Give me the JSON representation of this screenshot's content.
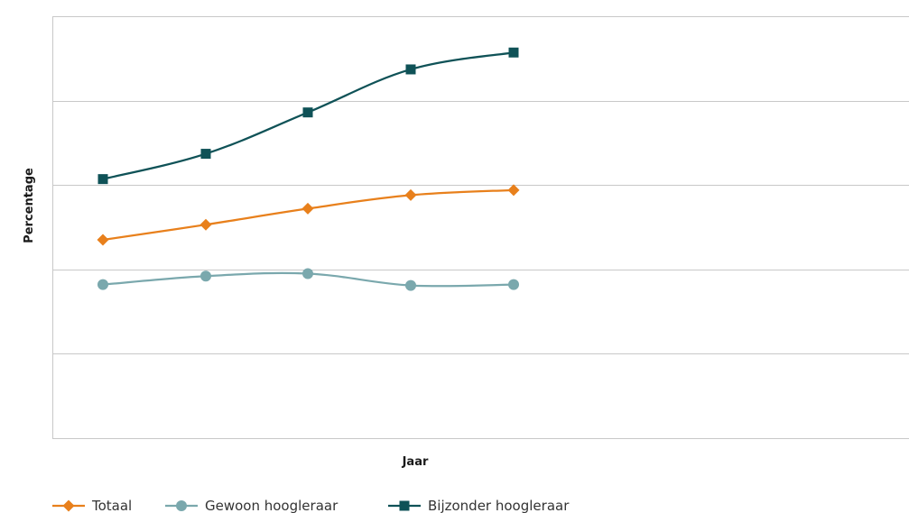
{
  "chart_data": {
    "type": "line",
    "title": "",
    "xlabel": "Jaar",
    "ylabel": "Percentage",
    "x": [
      1,
      2,
      3,
      4,
      5
    ],
    "ylim": [
      0,
      5
    ],
    "grid": true,
    "legend_position": "bottom-left",
    "series": [
      {
        "name": "Totaal",
        "color": "#e8801c",
        "marker": "diamond",
        "values": [
          2.35,
          2.53,
          2.72,
          2.88,
          2.94
        ]
      },
      {
        "name": "Gewoon hoogleraar",
        "color": "#7aa8ad",
        "marker": "circle",
        "values": [
          1.82,
          1.92,
          1.95,
          1.81,
          1.82
        ]
      },
      {
        "name": "Bijzonder hoogleraar",
        "color": "#0f5257",
        "marker": "square",
        "values": [
          3.07,
          3.37,
          3.86,
          4.37,
          4.57
        ]
      }
    ]
  }
}
